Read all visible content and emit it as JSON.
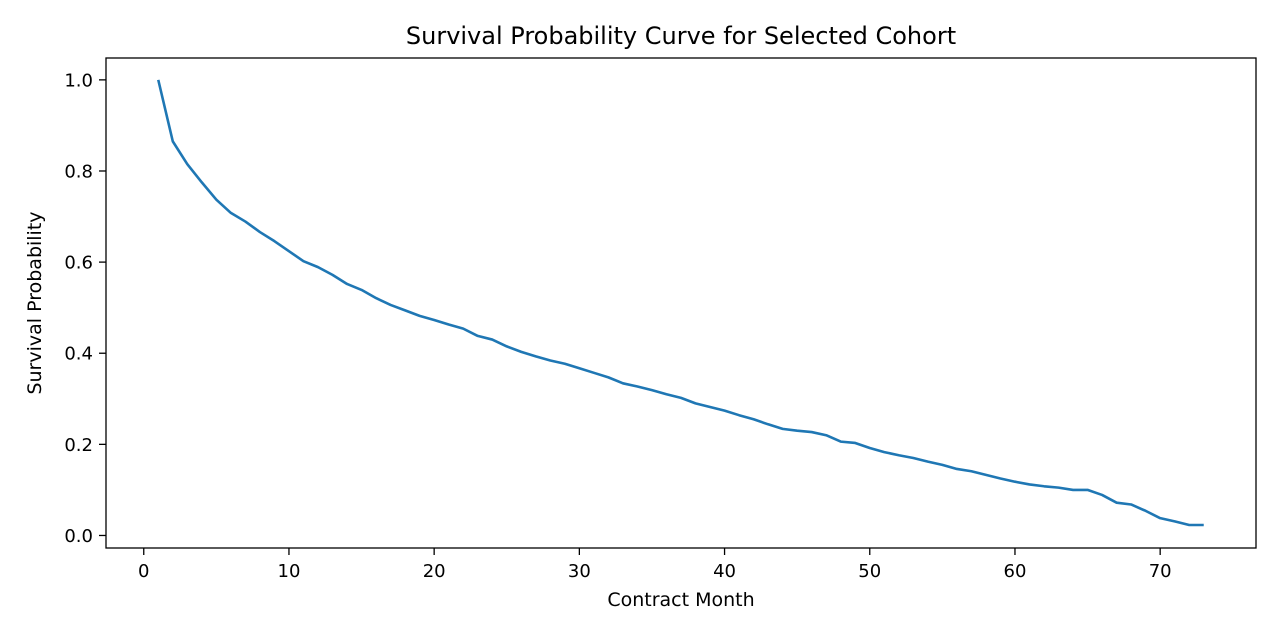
{
  "chart_data": {
    "type": "line",
    "title": "Survival Probability Curve for Selected Cohort",
    "xlabel": "Contract Month",
    "ylabel": "Survival Probability",
    "xlim": [
      -2.6,
      76.6
    ],
    "ylim": [
      -0.0275,
      1.048
    ],
    "xticks": [
      0,
      10,
      20,
      30,
      40,
      50,
      60,
      70
    ],
    "xtick_labels": [
      "0",
      "10",
      "20",
      "30",
      "40",
      "50",
      "60",
      "70"
    ],
    "yticks": [
      0.0,
      0.2,
      0.4,
      0.6,
      0.8,
      1.0
    ],
    "ytick_labels": [
      "0.0",
      "0.2",
      "0.4",
      "0.6",
      "0.8",
      "1.0"
    ],
    "grid": false,
    "series_color": "#1f77b4",
    "x": [
      1,
      2,
      3,
      4,
      5,
      6,
      7,
      8,
      9,
      10,
      11,
      12,
      13,
      14,
      15,
      16,
      17,
      18,
      19,
      20,
      21,
      22,
      23,
      24,
      25,
      26,
      27,
      28,
      29,
      30,
      31,
      32,
      33,
      34,
      35,
      36,
      37,
      38,
      39,
      40,
      41,
      42,
      43,
      44,
      45,
      46,
      47,
      48,
      49,
      50,
      51,
      52,
      53,
      54,
      55,
      56,
      57,
      58,
      59,
      60,
      61,
      62,
      63,
      64,
      65,
      66,
      67,
      68,
      69,
      70,
      71,
      72,
      73
    ],
    "y": [
      1.0,
      0.865,
      0.815,
      0.775,
      0.737,
      0.708,
      0.689,
      0.666,
      0.646,
      0.624,
      0.602,
      0.589,
      0.572,
      0.552,
      0.539,
      0.521,
      0.506,
      0.494,
      0.482,
      0.473,
      0.463,
      0.454,
      0.438,
      0.43,
      0.415,
      0.403,
      0.393,
      0.384,
      0.377,
      0.367,
      0.357,
      0.347,
      0.334,
      0.327,
      0.319,
      0.31,
      0.302,
      0.29,
      0.282,
      0.274,
      0.264,
      0.255,
      0.244,
      0.234,
      0.23,
      0.227,
      0.22,
      0.206,
      0.203,
      0.192,
      0.183,
      0.176,
      0.17,
      0.162,
      0.155,
      0.146,
      0.141,
      0.133,
      0.125,
      0.118,
      0.112,
      0.108,
      0.105,
      0.1,
      0.1,
      0.089,
      0.072,
      0.068,
      0.054,
      0.038,
      0.031,
      0.023,
      0.023
    ]
  }
}
